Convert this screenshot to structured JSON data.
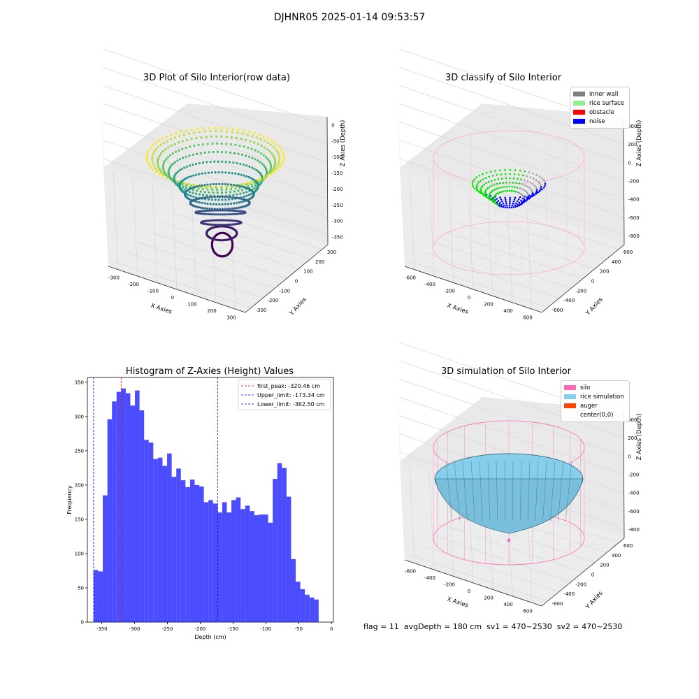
{
  "suptitle": "DJHNR05 2025-01-14 09:53:57",
  "footer": "flag = 11  avgDepth = 180 cm  sv1 = 470~2530  sv2 = 470~2530",
  "panels": {
    "raw": {
      "title": "3D Plot of Silo Interior(row data)",
      "xlabel": "X Axies",
      "ylabel": "Y Axies",
      "zlabel": "Z Axies (Depth)",
      "xticks": [
        "-300",
        "-200",
        "-100",
        "0",
        "100",
        "200",
        "300"
      ],
      "yticks": [
        "-300",
        "-200",
        "-100",
        "0",
        "100",
        "200",
        "300"
      ],
      "zticks": [
        "0",
        "-50",
        "-100",
        "-150",
        "-200",
        "-250",
        "-300",
        "-350"
      ]
    },
    "classify": {
      "title": "3D classify of Silo Interior",
      "xlabel": "X Axies",
      "ylabel": "Y Axies",
      "zlabel": "Z Axies (Depth)",
      "xticks": [
        "-600",
        "-400",
        "-200",
        "0",
        "200",
        "400",
        "600"
      ],
      "yticks": [
        "-600",
        "-400",
        "-200",
        "0",
        "200",
        "400",
        "600"
      ],
      "zticks": [
        "400",
        "200",
        "0",
        "-200",
        "-400",
        "-600",
        "-800"
      ],
      "legend": [
        {
          "label": "inner wall",
          "color": "#808080"
        },
        {
          "label": "rice surface",
          "color": "#90ee90"
        },
        {
          "label": "obstacle",
          "color": "#ff0000"
        },
        {
          "label": "noise",
          "color": "#0000ff"
        }
      ]
    },
    "simulation": {
      "title": "3D simulation of Silo Interior",
      "xlabel": "X Axies",
      "ylabel": "Y Axies",
      "zlabel": "Z Axies (Depth)",
      "xticks": [
        "-600",
        "-400",
        "-200",
        "0",
        "200",
        "400",
        "600"
      ],
      "yticks": [
        "-600",
        "-400",
        "-200",
        "0",
        "200",
        "400",
        "600"
      ],
      "zticks": [
        "400",
        "200",
        "0",
        "-200",
        "-400",
        "-600",
        "-800"
      ],
      "legend": [
        {
          "label": "silo",
          "color": "#ff69b4"
        },
        {
          "label": "rice simulation",
          "color": "#87ceeb"
        },
        {
          "label": "auger",
          "color": "#ff4500"
        },
        {
          "label": "center(0,0)",
          "color": "#ffffff"
        }
      ]
    }
  },
  "chart_data": {
    "type": "bar",
    "title": "Histogram of Z-Axies (Height) Values",
    "xlabel": "Depth (cm)",
    "ylabel": "Frequency",
    "xlim": [
      -372,
      3
    ],
    "ylim": [
      0,
      357
    ],
    "xticks": [
      -350,
      -300,
      -250,
      -200,
      -150,
      -100,
      -50,
      0
    ],
    "yticks": [
      0,
      50,
      100,
      150,
      200,
      250,
      300,
      350
    ],
    "bin_start": -362.5,
    "bin_width": 7,
    "values": [
      76,
      74,
      185,
      296,
      322,
      336,
      341,
      334,
      316,
      338,
      309,
      266,
      262,
      238,
      240,
      228,
      246,
      212,
      224,
      207,
      197,
      208,
      200,
      198,
      175,
      178,
      173,
      160,
      175,
      160,
      178,
      182,
      165,
      170,
      162,
      156,
      157,
      157,
      145,
      209,
      232,
      225,
      183,
      92,
      59,
      48,
      40,
      36,
      33
    ],
    "bar_color": "#0000ff",
    "vlines": [
      {
        "label": "first_peak: -320.46 cm",
        "x": -320.46,
        "color": "#ff0000"
      },
      {
        "label": "Upper_limit: -173.34 cm",
        "x": -173.34,
        "color": "#0000ff"
      },
      {
        "label": "Lower_limit: -362.50 cm",
        "x": -362.5,
        "color": "#0000ff"
      }
    ],
    "legend_position": "upper right"
  }
}
